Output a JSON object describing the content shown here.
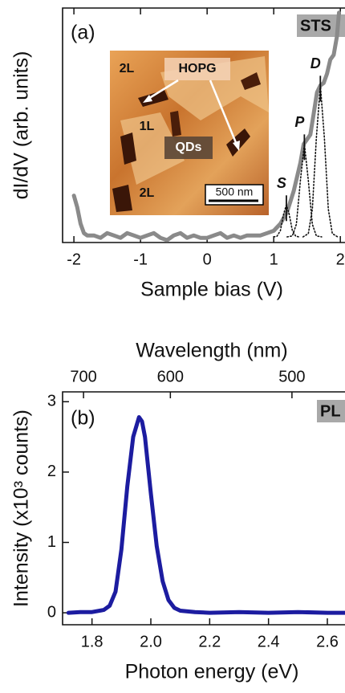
{
  "chart_data": [
    {
      "type": "line",
      "panel_label": "(a)",
      "tag": "STS",
      "ylabel": "dI/dV (arb. units)",
      "xlabel": "Sample bias (V)",
      "xlim": [
        -2.17,
        2.07
      ],
      "xticks": [
        -2,
        -1,
        0,
        1,
        2
      ],
      "ylim": [
        0,
        1
      ],
      "series": [
        {
          "color": "#8a8a8a",
          "style": "solid",
          "x": [
            -2,
            -1.95,
            -1.9,
            -1.85,
            -1.8,
            -1.7,
            -1.6,
            -1.5,
            -1.4,
            -1.3,
            -1.2,
            -1.1,
            -1.0,
            -0.9,
            -0.8,
            -0.7,
            -0.6,
            -0.5,
            -0.4,
            -0.3,
            -0.2,
            -0.1,
            0,
            0.1,
            0.2,
            0.3,
            0.4,
            0.5,
            0.6,
            0.7,
            0.8,
            0.9,
            1.0,
            1.1,
            1.2,
            1.3,
            1.4,
            1.45,
            1.5,
            1.55,
            1.6,
            1.65,
            1.7,
            1.75,
            1.8,
            1.85,
            1.9,
            1.95,
            1.98
          ],
          "values": [
            0.2,
            0.15,
            0.08,
            0.04,
            0.03,
            0.03,
            0.02,
            0.04,
            0.03,
            0.02,
            0.04,
            0.03,
            0.02,
            0.03,
            0.04,
            0.02,
            0.01,
            0.03,
            0.04,
            0.02,
            0.03,
            0.02,
            0.02,
            0.03,
            0.04,
            0.02,
            0.03,
            0.02,
            0.03,
            0.03,
            0.03,
            0.04,
            0.05,
            0.08,
            0.13,
            0.22,
            0.34,
            0.42,
            0.44,
            0.46,
            0.55,
            0.64,
            0.67,
            0.68,
            0.72,
            0.78,
            0.8,
            0.88,
            0.98
          ]
        },
        {
          "name": "S",
          "color": "#111111",
          "style": "dotted",
          "x": [
            1.0,
            1.05,
            1.1,
            1.15,
            1.19,
            1.23,
            1.28,
            1.33,
            1.38
          ],
          "values": [
            0.024,
            0.027,
            0.051,
            0.123,
            0.16,
            0.123,
            0.051,
            0.027,
            0.024
          ]
        },
        {
          "name": "P",
          "color": "#111111",
          "style": "dotted",
          "x": [
            1.2,
            1.28,
            1.34,
            1.4,
            1.46,
            1.52,
            1.58,
            1.64,
            1.72
          ],
          "values": [
            0.024,
            0.028,
            0.078,
            0.264,
            0.42,
            0.264,
            0.078,
            0.028,
            0.024
          ]
        },
        {
          "name": "D",
          "color": "#111111",
          "style": "dotted",
          "x": [
            1.44,
            1.52,
            1.58,
            1.64,
            1.7,
            1.76,
            1.82,
            1.88,
            1.96
          ],
          "values": [
            0.024,
            0.038,
            0.142,
            0.446,
            0.67,
            0.446,
            0.142,
            0.038,
            0.024
          ]
        }
      ],
      "inset": {
        "labels": [
          "2L",
          "HOPG",
          "1L",
          "QDs",
          "2L"
        ],
        "scale_bar": "500 nm"
      }
    },
    {
      "type": "line",
      "panel_label": "(b)",
      "tag": "PL",
      "ylabel": "Intensity (x10³ counts)",
      "xlabel": "Photon energy (eV)",
      "x2label": "Wavelength (nm)",
      "x2ticks": [
        700,
        600,
        500
      ],
      "xlim": [
        1.7,
        2.66
      ],
      "xticks": [
        1.8,
        {
          "value": 2.0,
          "label": "2.0"
        },
        2.2,
        2.4,
        2.6
      ],
      "ylim": [
        -0.17,
        3.14
      ],
      "yticks": [
        0,
        1,
        2,
        3
      ],
      "series": [
        {
          "color": "#1c1ca0",
          "style": "solid",
          "x": [
            1.72,
            1.76,
            1.8,
            1.84,
            1.86,
            1.88,
            1.9,
            1.92,
            1.94,
            1.96,
            1.97,
            1.98,
            2.0,
            2.02,
            2.04,
            2.06,
            2.08,
            2.1,
            2.15,
            2.2,
            2.3,
            2.4,
            2.5,
            2.6,
            2.66
          ],
          "values": [
            0.0,
            0.01,
            0.01,
            0.04,
            0.1,
            0.3,
            0.9,
            1.8,
            2.5,
            2.78,
            2.72,
            2.5,
            1.7,
            0.95,
            0.45,
            0.18,
            0.07,
            0.03,
            0.01,
            0.0,
            0.01,
            0.0,
            0.01,
            0.0,
            0.0
          ]
        }
      ]
    }
  ]
}
